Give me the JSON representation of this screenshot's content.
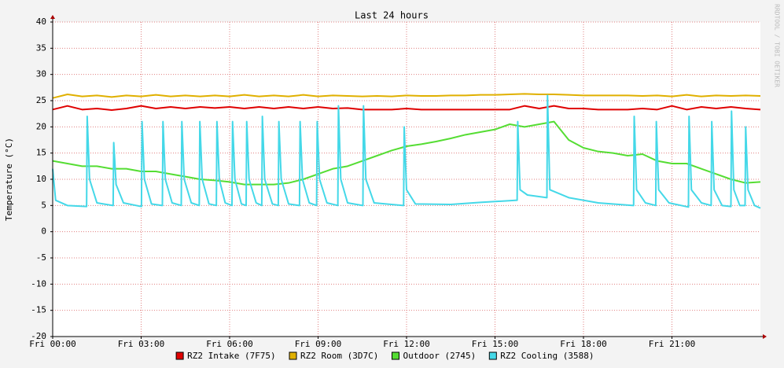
{
  "chart_data": {
    "type": "line",
    "title": "Last 24 hours",
    "y_label": "Temperature (°C)",
    "watermark": "RRDTOOL / TOBI OETIKER",
    "xlim": [
      0,
      24
    ],
    "xticks": [
      {
        "value": 0,
        "label": "Fri 00:00"
      },
      {
        "value": 3,
        "label": "Fri 03:00"
      },
      {
        "value": 6,
        "label": "Fri 06:00"
      },
      {
        "value": 9,
        "label": "Fri 09:00"
      },
      {
        "value": 12,
        "label": "Fri 12:00"
      },
      {
        "value": 15,
        "label": "Fri 15:00"
      },
      {
        "value": 18,
        "label": "Fri 18:00"
      },
      {
        "value": 21,
        "label": "Fri 21:00"
      }
    ],
    "ylim": [
      -20,
      40
    ],
    "yticks": [
      -20,
      -15,
      -10,
      -5,
      0,
      5,
      10,
      15,
      20,
      25,
      30,
      35,
      40
    ],
    "grid": true,
    "legend": "bottom",
    "series": [
      {
        "name": "RZ2 Intake (7F75)",
        "color": "#e00000",
        "x": [
          0,
          0.5,
          1,
          1.5,
          2,
          2.5,
          3,
          3.5,
          4,
          4.5,
          5,
          5.5,
          6,
          6.5,
          7,
          7.5,
          8,
          8.5,
          9,
          9.5,
          10,
          10.5,
          11,
          11.5,
          12,
          12.5,
          13,
          13.5,
          14,
          14.5,
          15,
          15.5,
          16,
          16.5,
          17,
          17.5,
          18,
          18.5,
          19,
          19.5,
          20,
          20.5,
          21,
          21.5,
          22,
          22.5,
          23,
          23.5,
          24
        ],
        "values": [
          23.3,
          24,
          23.3,
          23.5,
          23.2,
          23.5,
          24,
          23.5,
          23.8,
          23.5,
          23.8,
          23.6,
          23.8,
          23.5,
          23.8,
          23.5,
          23.8,
          23.5,
          23.8,
          23.5,
          23.6,
          23.3,
          23.3,
          23.3,
          23.5,
          23.3,
          23.3,
          23.3,
          23.3,
          23.3,
          23.3,
          23.3,
          24,
          23.5,
          24,
          23.5,
          23.5,
          23.3,
          23.3,
          23.3,
          23.5,
          23.3,
          24,
          23.3,
          23.8,
          23.5,
          23.8,
          23.5,
          23.3
        ]
      },
      {
        "name": "RZ2 Room (3D7C)",
        "color": "#e0b000",
        "x": [
          0,
          0.5,
          1,
          1.5,
          2,
          2.5,
          3,
          3.5,
          4,
          4.5,
          5,
          5.5,
          6,
          6.5,
          7,
          7.5,
          8,
          8.5,
          9,
          9.5,
          10,
          10.5,
          11,
          11.5,
          12,
          12.5,
          13,
          13.5,
          14,
          14.5,
          15,
          15.5,
          16,
          16.5,
          17,
          17.5,
          18,
          18.5,
          19,
          19.5,
          20,
          20.5,
          21,
          21.5,
          22,
          22.5,
          23,
          23.5,
          24
        ],
        "values": [
          25.5,
          26.2,
          25.8,
          26,
          25.7,
          26,
          25.8,
          26.1,
          25.8,
          26,
          25.8,
          26,
          25.8,
          26.1,
          25.8,
          26,
          25.8,
          26.1,
          25.8,
          26,
          25.9,
          25.8,
          25.9,
          25.8,
          26,
          25.9,
          25.9,
          26,
          26,
          26.1,
          26.1,
          26.2,
          26.3,
          26.2,
          26.2,
          26.1,
          26,
          26,
          26,
          26,
          25.9,
          26,
          25.8,
          26.1,
          25.8,
          26,
          25.9,
          26,
          25.9
        ]
      },
      {
        "name": "Outdoor (2745)",
        "color": "#55dd33",
        "x": [
          0,
          0.5,
          1,
          1.5,
          2,
          2.5,
          3,
          3.5,
          4,
          4.5,
          5,
          5.5,
          6,
          6.5,
          7,
          7.5,
          8,
          8.5,
          9,
          9.5,
          10,
          10.5,
          11,
          11.5,
          12,
          12.5,
          13,
          13.5,
          14,
          14.5,
          15,
          15.5,
          16,
          16.5,
          17,
          17.5,
          18,
          18.5,
          19,
          19.5,
          20,
          20.5,
          21,
          21.5,
          22,
          22.5,
          23,
          23.5,
          24
        ],
        "values": [
          13.5,
          13,
          12.5,
          12.5,
          12,
          12,
          11.5,
          11.5,
          11,
          10.5,
          10,
          9.8,
          9.5,
          9,
          9,
          9,
          9.3,
          10,
          11,
          12,
          12.5,
          13.5,
          14.5,
          15.5,
          16.3,
          16.7,
          17.2,
          17.8,
          18.5,
          19,
          19.5,
          20.5,
          20,
          20.5,
          21,
          17.5,
          16,
          15.3,
          15,
          14.5,
          14.8,
          13.5,
          13,
          13,
          12,
          11,
          10,
          9.3,
          9.5
        ]
      },
      {
        "name": "RZ2 Cooling (3588)",
        "color": "#44d8e8",
        "x": [
          0,
          0.1,
          0.5,
          1.15,
          1.17,
          1.25,
          1.5,
          2.05,
          2.07,
          2.15,
          2.4,
          3.01,
          3.03,
          3.11,
          3.35,
          3.72,
          3.74,
          3.82,
          4.05,
          4.36,
          4.38,
          4.46,
          4.7,
          4.97,
          4.99,
          5.07,
          5.3,
          5.55,
          5.57,
          5.65,
          5.85,
          6.08,
          6.1,
          6.18,
          6.4,
          6.56,
          6.58,
          6.66,
          6.9,
          7.09,
          7.11,
          7.19,
          7.45,
          7.65,
          7.67,
          7.75,
          8,
          8.37,
          8.39,
          8.47,
          8.7,
          8.95,
          8.97,
          9.05,
          9.3,
          9.67,
          9.69,
          9.77,
          10,
          10.52,
          10.54,
          10.62,
          10.9,
          11.9,
          11.92,
          12,
          12.3,
          13.5,
          14.5,
          15.75,
          15.77,
          15.85,
          16.1,
          16.76,
          16.78,
          16.86,
          17.5,
          18.5,
          19.7,
          19.72,
          19.8,
          20.1,
          20.45,
          20.47,
          20.55,
          20.9,
          21.56,
          21.58,
          21.66,
          22,
          22.33,
          22.35,
          22.43,
          22.7,
          23,
          23.02,
          23.1,
          23.3,
          23.48,
          23.5,
          23.58,
          23.8,
          24
        ],
        "values": [
          12,
          6,
          5,
          4.8,
          22,
          10,
          5.5,
          5,
          17,
          9,
          5.5,
          4.8,
          21,
          10,
          5.3,
          5,
          21,
          10,
          5.5,
          5,
          21,
          10,
          5.5,
          5,
          21,
          10,
          5.3,
          5,
          21,
          10,
          5.5,
          5,
          21,
          10,
          5.3,
          5,
          21,
          10,
          5.5,
          5,
          22,
          10,
          5.3,
          5,
          21,
          10,
          5.3,
          5,
          21,
          10,
          5.5,
          5,
          21,
          10,
          5.5,
          5,
          24,
          10,
          5.5,
          5,
          24,
          10,
          5.5,
          5,
          20,
          8,
          5.3,
          5.2,
          5.6,
          6,
          21,
          8,
          7,
          6.5,
          26,
          8,
          6.5,
          5.5,
          5,
          22,
          8,
          5.5,
          5,
          21,
          8,
          5.5,
          4.7,
          22,
          8,
          5.5,
          5,
          21,
          8,
          5,
          4.8,
          23,
          8,
          5,
          5,
          20,
          8,
          5,
          4.5
        ]
      }
    ]
  }
}
